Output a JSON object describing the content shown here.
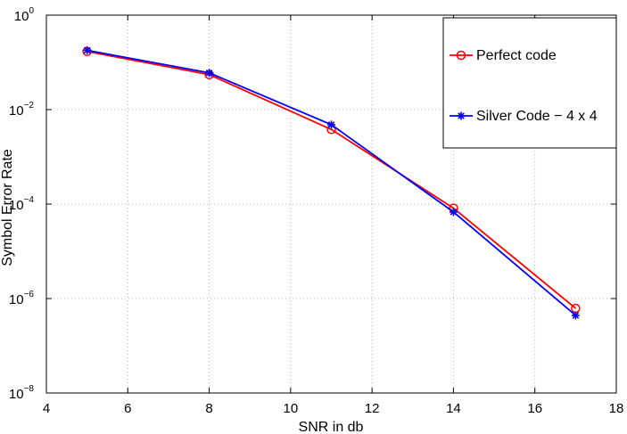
{
  "chart_data": {
    "type": "line",
    "xlabel": "SNR in db",
    "ylabel": "Symbol Error Rate",
    "xlim": [
      4,
      18
    ],
    "ylim": [
      1e-08,
      1
    ],
    "yscale": "log",
    "grid": true,
    "legend_position": "top-right",
    "x_ticks": [
      4,
      6,
      8,
      10,
      12,
      14,
      16,
      18
    ],
    "y_ticks": [
      {
        "base": "10",
        "exp": "0",
        "value": 1
      },
      {
        "base": "10",
        "exp": "−2",
        "value": 0.01
      },
      {
        "base": "10",
        "exp": "−4",
        "value": 0.0001
      },
      {
        "base": "10",
        "exp": "−6",
        "value": 1e-06
      },
      {
        "base": "10",
        "exp": "−8",
        "value": 1e-08
      }
    ],
    "series": [
      {
        "name": "Perfect code",
        "color": "#ff0000",
        "marker": "circle",
        "x": [
          5,
          8,
          11,
          14,
          17
        ],
        "y": [
          0.17,
          0.055,
          0.0038,
          8.2e-05,
          6.2e-07
        ]
      },
      {
        "name": "Silver Code − 4 x 4",
        "color": "#0000ff",
        "marker": "asterisk",
        "x": [
          5,
          8,
          11,
          14,
          17
        ],
        "y": [
          0.18,
          0.06,
          0.0048,
          6.8e-05,
          4.4e-07
        ]
      }
    ]
  }
}
